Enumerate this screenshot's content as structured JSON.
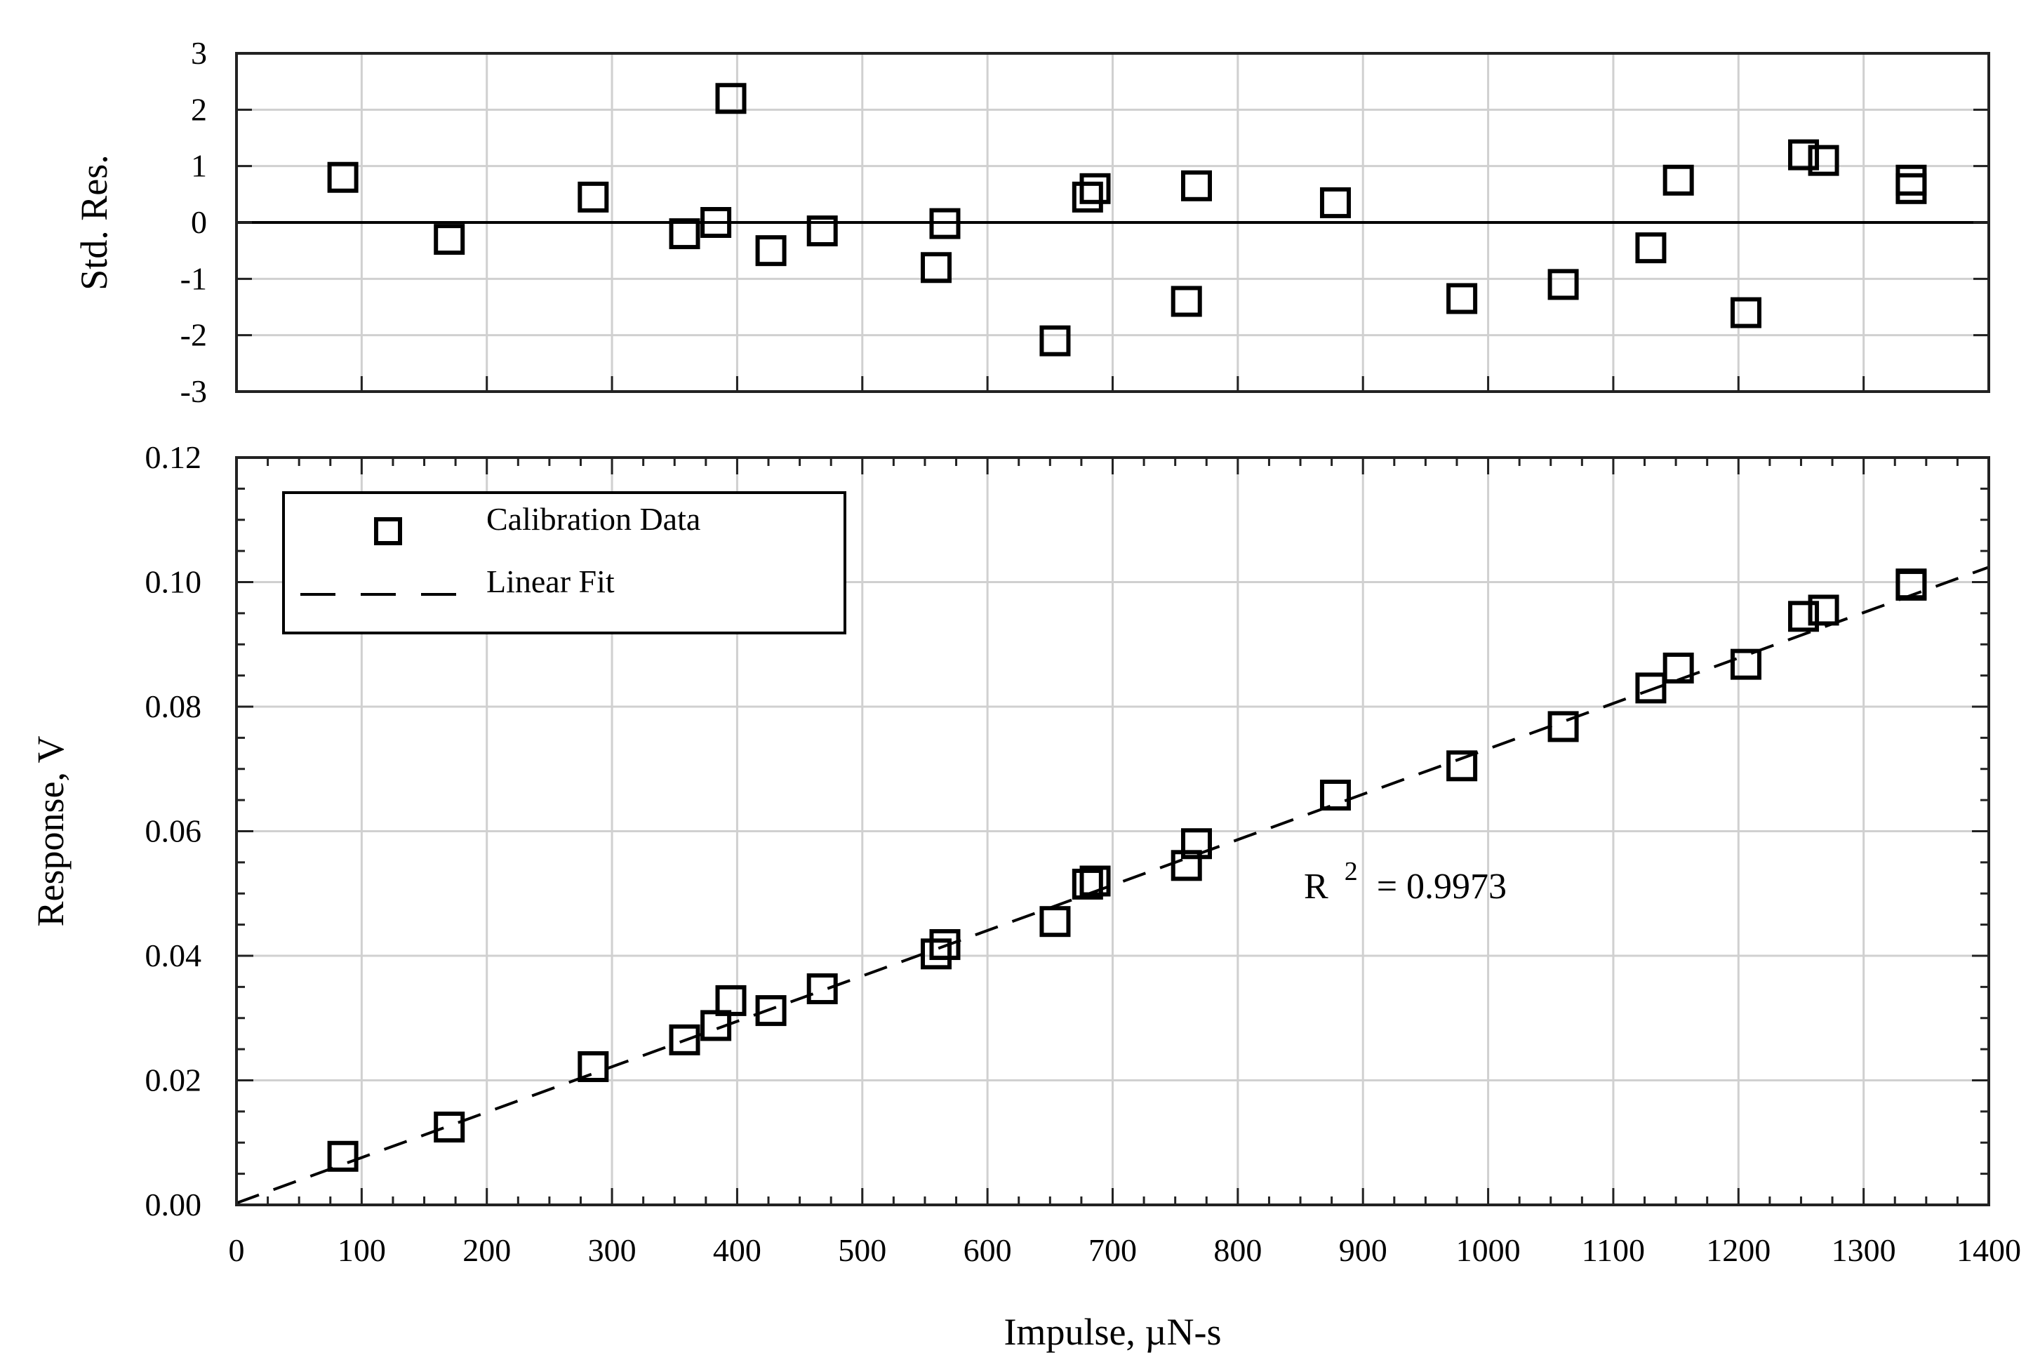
{
  "chart_data": [
    {
      "type": "scatter",
      "name": "residuals",
      "ylabel": "Std. Res.",
      "xlim": [
        0,
        1400
      ],
      "ylim": [
        -3,
        3
      ],
      "yticks": [
        "-3",
        "-2",
        "-1",
        "0",
        "1",
        "2",
        "3"
      ],
      "ytick_values": [
        -3,
        -2,
        -1,
        0,
        1,
        2,
        3
      ],
      "reference_line_y": 0,
      "series": [
        {
          "name": "Standardized Residuals",
          "points": [
            [
              85,
              0.8
            ],
            [
              170,
              -0.3
            ],
            [
              285,
              0.45
            ],
            [
              358,
              -0.2
            ],
            [
              383,
              0.0
            ],
            [
              395,
              2.2
            ],
            [
              427,
              -0.5
            ],
            [
              468,
              -0.15
            ],
            [
              559,
              -0.8
            ],
            [
              566,
              -0.02
            ],
            [
              654,
              -2.1
            ],
            [
              680,
              0.45
            ],
            [
              686,
              0.6
            ],
            [
              759,
              -1.4
            ],
            [
              767,
              0.65
            ],
            [
              878,
              0.35
            ],
            [
              979,
              -1.35
            ],
            [
              1060,
              -1.1
            ],
            [
              1130,
              -0.45
            ],
            [
              1152,
              0.75
            ],
            [
              1206,
              -1.6
            ],
            [
              1252,
              1.2
            ],
            [
              1268,
              1.1
            ],
            [
              1338,
              0.75
            ],
            [
              1338,
              0.6
            ]
          ]
        }
      ]
    },
    {
      "type": "scatter",
      "name": "calibration",
      "title": "",
      "xlabel": "Impulse, µN-s",
      "ylabel": "Response, V",
      "xlim": [
        0,
        1400
      ],
      "ylim": [
        0,
        0.12
      ],
      "xticks": [
        "0",
        "100",
        "200",
        "300",
        "400",
        "500",
        "600",
        "700",
        "800",
        "900",
        "1000",
        "1100",
        "1200",
        "1300",
        "1400"
      ],
      "xtick_values": [
        0,
        100,
        200,
        300,
        400,
        500,
        600,
        700,
        800,
        900,
        1000,
        1100,
        1200,
        1300,
        1400
      ],
      "yticks": [
        "0.00",
        "0.02",
        "0.04",
        "0.06",
        "0.08",
        "0.10",
        "0.12"
      ],
      "ytick_values": [
        0,
        0.02,
        0.04,
        0.06,
        0.08,
        0.1,
        0.12
      ],
      "legend_position": "top-left",
      "legend": [
        "Calibration Data",
        "Linear Fit"
      ],
      "annotation": {
        "label": "R",
        "superscript": "2",
        "value": "= 0.9973"
      },
      "series": [
        {
          "name": "Calibration Data",
          "points": [
            [
              85,
              0.0078
            ],
            [
              170,
              0.0125
            ],
            [
              285,
              0.0222
            ],
            [
              358,
              0.0265
            ],
            [
              383,
              0.0288
            ],
            [
              395,
              0.0328
            ],
            [
              427,
              0.0312
            ],
            [
              468,
              0.0347
            ],
            [
              559,
              0.0403
            ],
            [
              566,
              0.0418
            ],
            [
              654,
              0.0455
            ],
            [
              680,
              0.0515
            ],
            [
              686,
              0.052
            ],
            [
              759,
              0.0545
            ],
            [
              767,
              0.058
            ],
            [
              878,
              0.0658
            ],
            [
              979,
              0.0705
            ],
            [
              1060,
              0.0768
            ],
            [
              1130,
              0.083
            ],
            [
              1152,
              0.0862
            ],
            [
              1206,
              0.0868
            ],
            [
              1252,
              0.0945
            ],
            [
              1268,
              0.0955
            ],
            [
              1338,
              0.0997
            ],
            [
              1338,
              0.0995
            ]
          ]
        },
        {
          "name": "Linear Fit",
          "line": {
            "x": [
              0,
              1400
            ],
            "y": [
              0.0003,
              0.1024
            ]
          }
        }
      ]
    }
  ]
}
